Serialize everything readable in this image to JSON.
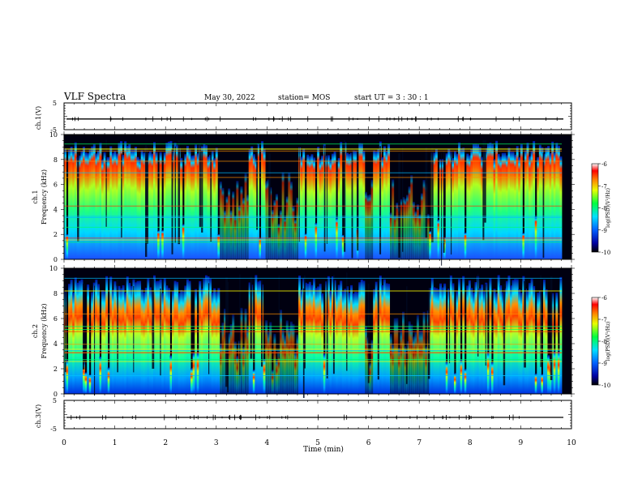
{
  "header": {
    "title": "VLF Spectra",
    "date": "May 30, 2022",
    "station": "station= MOS",
    "start": "start  UT =  3 : 30 : 1"
  },
  "chart_data": [
    {
      "type": "line",
      "ylabel": "ch.1(V)",
      "ylim": [
        -5,
        5
      ],
      "yticks": [
        "5",
        "-5"
      ],
      "baseline": -1
    },
    {
      "type": "heatmap",
      "ylabel": "ch.1 Frequency (kHz)",
      "ylabel_line1": "ch.1",
      "ylabel_line2": "Frequency (kHz)",
      "ylim": [
        0,
        10
      ],
      "yticks": [
        "0",
        "2",
        "4",
        "6",
        "8",
        "10"
      ],
      "colorbar": {
        "label": "log(PSD)(V²/Hz)",
        "range": [
          -10,
          -6
        ],
        "ticks": [
          "-6",
          "-7",
          "-8",
          "-9",
          "-10"
        ]
      }
    },
    {
      "type": "heatmap",
      "ylabel": "ch.2 Frequency (kHz)",
      "ylabel_line1": "ch.2",
      "ylabel_line2": "Frequency (kHz)",
      "ylim": [
        0,
        10
      ],
      "yticks": [
        "0",
        "2",
        "4",
        "6",
        "8",
        "10"
      ],
      "colorbar": {
        "label": "log(PSD)(V²/Hz)",
        "range": [
          -10,
          -6
        ],
        "ticks": [
          "-6",
          "-7",
          "-8",
          "-9",
          "-10"
        ]
      }
    },
    {
      "type": "line",
      "ylabel": "ch.3(V)",
      "ylim": [
        -5,
        5
      ],
      "yticks": [
        "5",
        "-5"
      ],
      "baseline": -1
    }
  ],
  "xaxis": {
    "label": "Time  (min)",
    "xlim": [
      0,
      10
    ],
    "ticks": [
      "0",
      "1",
      "2",
      "3",
      "4",
      "5",
      "6",
      "7",
      "8",
      "9",
      "10"
    ]
  }
}
